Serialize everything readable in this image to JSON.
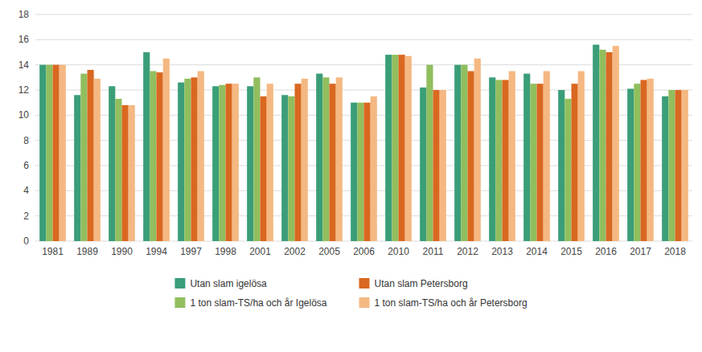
{
  "chart_data": {
    "type": "bar",
    "categories": [
      "1981",
      "1989",
      "1990",
      "1994",
      "1997",
      "1998",
      "2001",
      "2002",
      "2005",
      "2006",
      "2010",
      "2011",
      "2012",
      "2013",
      "2014",
      "2015",
      "2016",
      "2017",
      "2018"
    ],
    "series": [
      {
        "name": "Utan slam igelösa",
        "color": "#3A9E78",
        "values": [
          14.0,
          11.6,
          12.3,
          15.0,
          12.6,
          12.3,
          12.3,
          11.6,
          13.3,
          11.0,
          14.8,
          12.2,
          14.0,
          13.0,
          13.3,
          12.0,
          15.6,
          12.1,
          11.5
        ]
      },
      {
        "name": "1 ton slam-TS/ha och år Igelösa",
        "color": "#91BE5E",
        "values": [
          14.0,
          13.3,
          11.3,
          13.5,
          12.9,
          12.4,
          13.0,
          11.5,
          13.0,
          11.0,
          14.8,
          14.0,
          14.0,
          12.8,
          12.5,
          11.3,
          15.2,
          12.5,
          12.0
        ]
      },
      {
        "name": "Utan slam Petersborg",
        "color": "#D96820",
        "values": [
          14.0,
          13.6,
          10.8,
          13.4,
          13.0,
          12.5,
          11.5,
          12.5,
          12.5,
          11.0,
          14.8,
          12.0,
          13.5,
          12.8,
          12.5,
          12.5,
          15.0,
          12.8,
          12.0
        ]
      },
      {
        "name": "1 ton slam-TS/ha och år Petersborg",
        "color": "#F5B882",
        "values": [
          14.0,
          12.9,
          10.8,
          14.5,
          13.5,
          12.5,
          12.5,
          12.9,
          13.0,
          11.5,
          14.7,
          12.0,
          14.5,
          13.5,
          13.5,
          13.5,
          15.5,
          12.9,
          12.0
        ]
      }
    ],
    "ylim": [
      0,
      18
    ],
    "yticks": [
      0,
      2,
      4,
      6,
      8,
      10,
      12,
      14,
      16,
      18
    ],
    "grid": true,
    "legend": "bottom"
  }
}
